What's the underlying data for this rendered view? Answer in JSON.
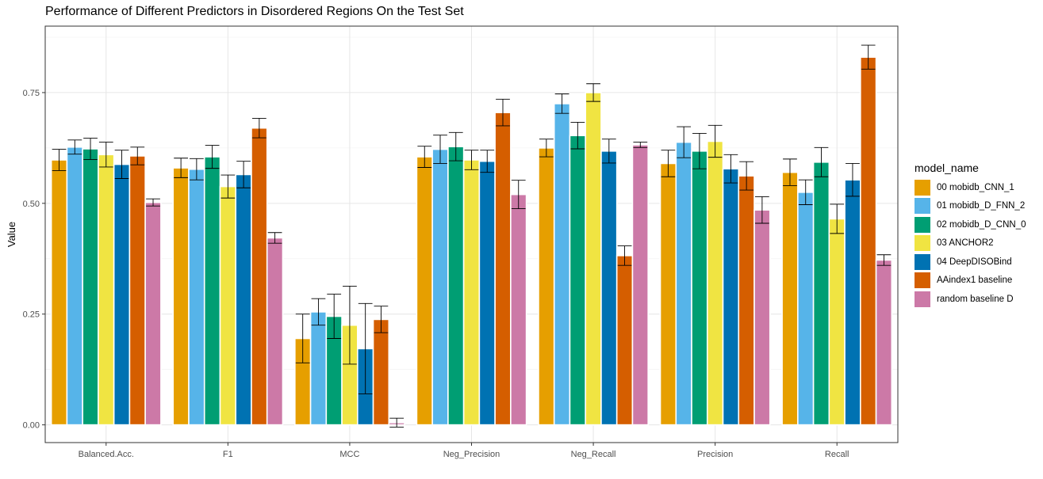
{
  "chart_data": {
    "type": "bar",
    "title": "Performance of Different Predictors in Disordered Regions On the Test Set",
    "xlabel": "",
    "ylabel": "Value",
    "ylim": [
      -0.04,
      0.9
    ],
    "yticks": [
      "0.00",
      "0.25",
      "0.50",
      "0.75"
    ],
    "grid": true,
    "legend_title": "model_name",
    "legend_position": "right",
    "categories": [
      "Balanced.Acc.",
      "F1",
      "MCC",
      "Neg_Precision",
      "Neg_Recall",
      "Precision",
      "Recall"
    ],
    "series": [
      {
        "name": "00 mobidb_CNN_1",
        "color": "#E69F00",
        "values": [
          0.598,
          0.58,
          0.195,
          0.605,
          0.625,
          0.59,
          0.57
        ],
        "errors": [
          0.024,
          0.022,
          0.055,
          0.024,
          0.02,
          0.03,
          0.03
        ]
      },
      {
        "name": "01 mobidb_D_FNN_2",
        "color": "#56B4E9",
        "values": [
          0.627,
          0.577,
          0.255,
          0.622,
          0.725,
          0.638,
          0.525
        ],
        "errors": [
          0.016,
          0.024,
          0.03,
          0.032,
          0.022,
          0.035,
          0.028
        ]
      },
      {
        "name": "02 mobidb_D_CNN_0",
        "color": "#009E73",
        "values": [
          0.623,
          0.605,
          0.245,
          0.628,
          0.653,
          0.618,
          0.593
        ],
        "errors": [
          0.024,
          0.026,
          0.05,
          0.032,
          0.03,
          0.04,
          0.033
        ]
      },
      {
        "name": "03 ANCHOR2",
        "color": "#F0E442",
        "values": [
          0.61,
          0.538,
          0.225,
          0.598,
          0.75,
          0.64,
          0.465
        ],
        "errors": [
          0.028,
          0.026,
          0.088,
          0.022,
          0.02,
          0.036,
          0.033
        ]
      },
      {
        "name": "04 DeepDISOBind",
        "color": "#0072B2",
        "values": [
          0.588,
          0.565,
          0.172,
          0.595,
          0.618,
          0.578,
          0.553
        ],
        "errors": [
          0.032,
          0.03,
          0.102,
          0.025,
          0.027,
          0.032,
          0.037
        ]
      },
      {
        "name": "AAindex1 baseline",
        "color": "#D55E00",
        "values": [
          0.607,
          0.67,
          0.238,
          0.705,
          0.382,
          0.562,
          0.83
        ],
        "errors": [
          0.02,
          0.022,
          0.03,
          0.03,
          0.022,
          0.032,
          0.027
        ]
      },
      {
        "name": "random baseline D",
        "color": "#CC79A7",
        "values": [
          0.502,
          0.422,
          0.005,
          0.52,
          0.632,
          0.485,
          0.372
        ],
        "errors": [
          0.008,
          0.012,
          0.01,
          0.032,
          0.006,
          0.03,
          0.012
        ]
      }
    ]
  }
}
